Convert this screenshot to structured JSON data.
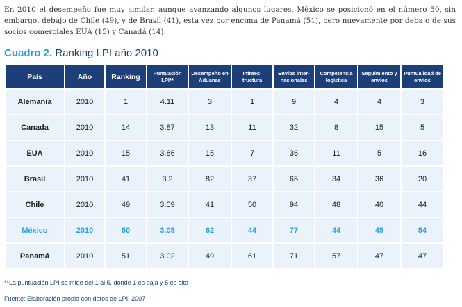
{
  "intro_text": "En 2010 el desempeño fue muy similar, aunque avanzando algunos lugares, México se posicionó en el número 50, sin embargo, debajo de Chile (49), y de Brasil (41), esta vez por encima de Panamá (51), pero nuevamente por debajo de sus socios comerciales EUA (15) y Canadá (14).",
  "caption": {
    "label": "Cuadro 2.",
    "title": " Ranking LPI año 2010"
  },
  "table": {
    "headers": [
      "País",
      "Año",
      "Ranking",
      "Puntuación LPI**",
      "Desempeño en Aduanas",
      "Infraes-tructura",
      "Envíos inter-nacionales",
      "Competencia logística",
      "Seguimiento y envíos",
      "Puntualidad de envíos"
    ],
    "rows": [
      [
        "Alemania",
        "2010",
        "1",
        "4.11",
        "3",
        "1",
        "9",
        "4",
        "4",
        "3"
      ],
      [
        "Canada",
        "2010",
        "14",
        "3.87",
        "13",
        "11",
        "32",
        "8",
        "15",
        "5"
      ],
      [
        "EUA",
        "2010",
        "15",
        "3.86",
        "15",
        "7",
        "36",
        "11",
        "5",
        "16"
      ],
      [
        "Brasil",
        "2010",
        "41",
        "3.2",
        "82",
        "37",
        "65",
        "34",
        "36",
        "20"
      ],
      [
        "Chile",
        "2010",
        "49",
        "3.09",
        "41",
        "50",
        "94",
        "48",
        "40",
        "44"
      ],
      [
        "México",
        "2010",
        "50",
        "3.05",
        "62",
        "44",
        "77",
        "44",
        "45",
        "54"
      ],
      [
        "Panamá",
        "2010",
        "51",
        "3.02",
        "49",
        "61",
        "71",
        "57",
        "47",
        "47"
      ]
    ],
    "highlight_color": "#2a9ee0",
    "header_bg": "#1c3f7a",
    "cell_bg": "#eaf3fb"
  },
  "footnote": "**La puntuación LPI se mide del 1 al 5, donde 1 es baja y 5 es alta",
  "source": "Fuente: Elaboración propia con datos de LPI, 2007"
}
